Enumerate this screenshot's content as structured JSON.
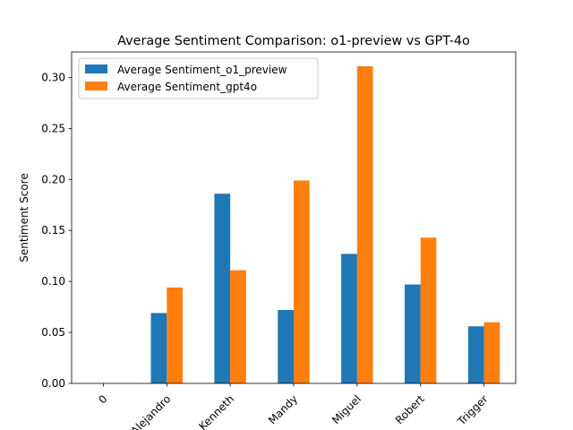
{
  "chart_data": {
    "type": "bar",
    "title": "Average Sentiment Comparison: o1-preview vs GPT-4o",
    "xlabel": "",
    "ylabel": "Sentiment Score",
    "ylim": [
      0,
      0.325
    ],
    "yticks": [
      0.0,
      0.05,
      0.1,
      0.15,
      0.2,
      0.25,
      0.3
    ],
    "ytick_labels": [
      "0.00",
      "0.05",
      "0.10",
      "0.15",
      "0.20",
      "0.25",
      "0.30"
    ],
    "categories": [
      "0",
      "Alejandro",
      "Kenneth",
      "Mandy",
      "Miguel",
      "Robert",
      "Trigger"
    ],
    "legend_position": "top-left",
    "grid": false,
    "series": [
      {
        "name": "Average Sentiment_o1_preview",
        "color": "#1f77b4",
        "values": [
          0.0,
          0.069,
          0.186,
          0.072,
          0.127,
          0.097,
          0.056
        ]
      },
      {
        "name": "Average Sentiment_gpt4o",
        "color": "#ff7f0e",
        "values": [
          0.0,
          0.094,
          0.111,
          0.199,
          0.311,
          0.143,
          0.06
        ]
      }
    ]
  }
}
